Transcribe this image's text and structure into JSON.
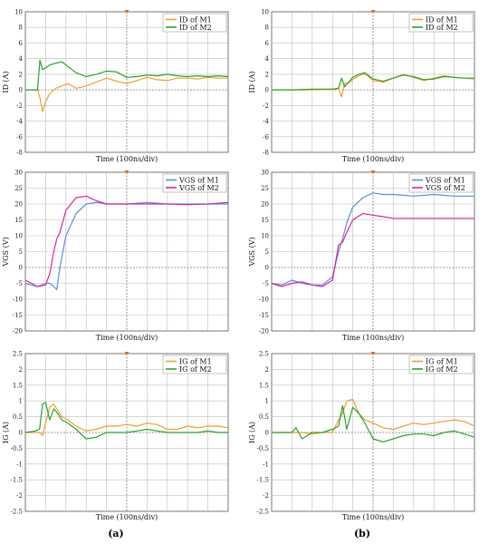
{
  "panel_labels": {
    "a": "(a)",
    "b": "(b)"
  },
  "colors": {
    "m1_id": "#f39c33",
    "m2_id": "#28a428",
    "m1_vgs": "#5b8fe0",
    "m2_vgs": "#d9259e",
    "m1_ig": "#f39c33",
    "m2_ig": "#28a428"
  },
  "chart_data": [
    {
      "type": "line",
      "panel": "a",
      "xlabel": "Time (100ns/div)",
      "ylabel": "ID (A)",
      "xlim": [
        0,
        10
      ],
      "ylim": [
        -8,
        10
      ],
      "yticks": [
        -8,
        -6,
        -4,
        -2,
        0,
        2,
        4,
        6,
        8,
        10
      ],
      "legend": "top-right",
      "series": [
        {
          "name": "ID of M1",
          "color": "#f39c33",
          "x": [
            0,
            0.4,
            0.6,
            0.72,
            0.85,
            1.0,
            1.2,
            1.5,
            1.8,
            2.1,
            2.5,
            3.0,
            3.5,
            4.0,
            4.5,
            5.0,
            5.5,
            6.0,
            6.5,
            7.0,
            7.5,
            8.0,
            8.5,
            9.0,
            9.5,
            10
          ],
          "y": [
            0,
            0,
            0,
            -1.0,
            -2.8,
            -1.5,
            -0.5,
            0.2,
            0.5,
            0.8,
            0.2,
            0.5,
            1.0,
            1.5,
            1.1,
            0.8,
            1.2,
            1.6,
            1.3,
            1.2,
            1.5,
            1.5,
            1.4,
            1.6,
            1.5,
            1.5
          ]
        },
        {
          "name": "ID of M2",
          "color": "#28a428",
          "x": [
            0,
            0.4,
            0.6,
            0.72,
            0.85,
            1.0,
            1.2,
            1.5,
            1.8,
            2.1,
            2.5,
            3.0,
            3.5,
            4.0,
            4.5,
            5.0,
            5.5,
            6.0,
            6.5,
            7.0,
            7.5,
            8.0,
            8.5,
            9.0,
            9.5,
            10
          ],
          "y": [
            0,
            0,
            0,
            3.8,
            2.6,
            2.8,
            3.2,
            3.4,
            3.6,
            3.0,
            2.2,
            1.7,
            2.0,
            2.4,
            2.3,
            1.6,
            1.7,
            1.9,
            1.8,
            2.0,
            1.8,
            1.7,
            1.8,
            1.7,
            1.8,
            1.7
          ]
        }
      ]
    },
    {
      "type": "line",
      "panel": "b",
      "xlabel": "Time (100ns/div)",
      "ylabel": "ID (A)",
      "xlim": [
        0,
        10
      ],
      "ylim": [
        -8,
        10
      ],
      "yticks": [
        -8,
        -6,
        -4,
        -2,
        0,
        2,
        4,
        6,
        8,
        10
      ],
      "legend": "top-right",
      "series": [
        {
          "name": "ID of M1",
          "color": "#f39c33",
          "x": [
            0,
            1,
            2,
            3,
            3.3,
            3.45,
            3.6,
            3.8,
            4.0,
            4.3,
            4.6,
            5.0,
            5.5,
            6.0,
            6.5,
            7.0,
            7.5,
            8.0,
            8.5,
            9.0,
            9.5,
            10
          ],
          "y": [
            0,
            0,
            0,
            0.1,
            0.2,
            -0.9,
            0.8,
            0.9,
            1.3,
            1.8,
            2.1,
            1.2,
            1.0,
            1.5,
            2.0,
            1.6,
            1.2,
            1.5,
            1.8,
            1.6,
            1.5,
            1.4
          ]
        },
        {
          "name": "ID of M2",
          "color": "#28a428",
          "x": [
            0,
            1,
            2,
            3,
            3.3,
            3.45,
            3.6,
            3.8,
            4.0,
            4.3,
            4.6,
            5.0,
            5.5,
            6.0,
            6.5,
            7.0,
            7.5,
            8.0,
            8.5,
            9.0,
            9.5,
            10
          ],
          "y": [
            0,
            0,
            0.1,
            0.1,
            0.2,
            1.5,
            0.4,
            1.0,
            1.6,
            2.0,
            2.2,
            1.4,
            1.1,
            1.5,
            1.9,
            1.7,
            1.3,
            1.4,
            1.7,
            1.6,
            1.5,
            1.5
          ]
        }
      ]
    },
    {
      "type": "line",
      "panel": "a",
      "xlabel": "Time (100ns/div)",
      "ylabel": "VGS (V)",
      "xlim": [
        0,
        10
      ],
      "ylim": [
        -20,
        30
      ],
      "yticks": [
        -20,
        -15,
        -10,
        -5,
        0,
        5,
        10,
        15,
        20,
        25,
        30
      ],
      "legend": "top-right",
      "series": [
        {
          "name": "VGS of M1",
          "color": "#5b8fe0",
          "x": [
            0,
            0.3,
            0.6,
            1.0,
            1.2,
            1.4,
            1.55,
            1.7,
            2.0,
            2.5,
            3.0,
            3.5,
            4.0,
            5.0,
            6.0,
            7.0,
            8.0,
            9.0,
            10
          ],
          "y": [
            -5,
            -5.5,
            -6,
            -5,
            -5,
            -6,
            -7,
            0,
            10,
            17,
            20,
            20.5,
            20,
            20,
            20.5,
            20,
            20,
            20,
            20
          ]
        },
        {
          "name": "VGS of M2",
          "color": "#d9259e",
          "x": [
            0,
            0.3,
            0.6,
            1.0,
            1.2,
            1.4,
            1.55,
            1.7,
            2.0,
            2.5,
            3.0,
            3.5,
            4.0,
            5.0,
            6.0,
            7.0,
            8.0,
            9.0,
            10
          ],
          "y": [
            -4,
            -5,
            -6,
            -5.5,
            -2,
            5,
            9,
            11,
            18,
            22,
            22.5,
            21,
            20,
            20,
            20,
            20,
            19.8,
            20,
            20.5
          ]
        }
      ]
    },
    {
      "type": "line",
      "panel": "b",
      "xlabel": "Time (100ns/div)",
      "ylabel": "VGS (V)",
      "xlim": [
        0,
        10
      ],
      "ylim": [
        -20,
        30
      ],
      "yticks": [
        -20,
        -15,
        -10,
        -5,
        0,
        5,
        10,
        15,
        20,
        25,
        30
      ],
      "legend": "top-right",
      "series": [
        {
          "name": "VGS of M1",
          "color": "#5b8fe0",
          "x": [
            0,
            0.5,
            1.0,
            1.5,
            2.0,
            2.5,
            3.0,
            3.3,
            3.5,
            3.7,
            4.0,
            4.5,
            5.0,
            5.5,
            6.0,
            7.0,
            8.0,
            9.0,
            10
          ],
          "y": [
            -5,
            -5.5,
            -4,
            -5,
            -5.5,
            -5.5,
            -3,
            5,
            9,
            14,
            19,
            22,
            23.5,
            23,
            23,
            22.5,
            23,
            22.5,
            22.5
          ]
        },
        {
          "name": "VGS of M2",
          "color": "#d9259e",
          "x": [
            0,
            0.5,
            1.0,
            1.5,
            2.0,
            2.5,
            3.0,
            3.3,
            3.5,
            3.7,
            4.0,
            4.5,
            5.0,
            5.5,
            6.0,
            7.0,
            8.0,
            9.0,
            10
          ],
          "y": [
            -5,
            -6,
            -5,
            -4.5,
            -5.5,
            -6,
            -4,
            7,
            8,
            11,
            15,
            17,
            16.5,
            16,
            15.5,
            15.5,
            15.5,
            15.5,
            15.5
          ]
        }
      ]
    },
    {
      "type": "line",
      "panel": "a",
      "xlabel": "Time (100ns/div)",
      "ylabel": "IG (A)",
      "xlim": [
        0,
        10
      ],
      "ylim": [
        -2.5,
        2.5
      ],
      "yticks": [
        -2.5,
        -2,
        -1.5,
        -1,
        -0.5,
        0,
        0.5,
        1,
        1.5,
        2,
        2.5
      ],
      "legend": "top-right",
      "series": [
        {
          "name": "IG of M1",
          "color": "#f39c33",
          "x": [
            0,
            0.5,
            0.7,
            0.85,
            1.0,
            1.2,
            1.4,
            1.6,
            1.8,
            2.1,
            2.5,
            3.0,
            3.5,
            4.0,
            4.5,
            5.0,
            5.5,
            6.0,
            6.5,
            7.0,
            7.5,
            8.0,
            8.5,
            9.0,
            9.5,
            10
          ],
          "y": [
            0,
            0,
            0,
            -0.1,
            0.3,
            0.8,
            0.9,
            0.7,
            0.5,
            0.4,
            0.2,
            0.05,
            0.1,
            0.2,
            0.2,
            0.25,
            0.2,
            0.3,
            0.25,
            0.1,
            0.1,
            0.2,
            0.15,
            0.2,
            0.2,
            0.15
          ]
        },
        {
          "name": "IG of M2",
          "color": "#28a428",
          "x": [
            0,
            0.5,
            0.7,
            0.85,
            1.0,
            1.2,
            1.4,
            1.6,
            1.8,
            2.1,
            2.5,
            3.0,
            3.5,
            4.0,
            4.5,
            5.0,
            5.5,
            6.0,
            6.5,
            7.0,
            7.5,
            8.0,
            8.5,
            9.0,
            9.5,
            10
          ],
          "y": [
            0,
            0.05,
            0.1,
            0.9,
            0.95,
            0.4,
            0.75,
            0.6,
            0.4,
            0.3,
            0.1,
            -0.2,
            -0.15,
            0,
            0,
            0,
            0.05,
            0.1,
            0.05,
            0,
            0,
            0,
            0,
            0.05,
            0,
            0
          ]
        }
      ]
    },
    {
      "type": "line",
      "panel": "b",
      "xlabel": "Time (100ns/div)",
      "ylabel": "IG (A)",
      "xlim": [
        0,
        10
      ],
      "ylim": [
        -2.5,
        2.5
      ],
      "yticks": [
        -2.5,
        -2,
        -1.5,
        -1,
        -0.5,
        0,
        0.5,
        1,
        1.5,
        2,
        2.5
      ],
      "legend": "top-right",
      "series": [
        {
          "name": "IG of M1",
          "color": "#f39c33",
          "x": [
            0,
            0.5,
            1.0,
            1.5,
            2.0,
            2.5,
            3.0,
            3.3,
            3.5,
            3.7,
            4.0,
            4.3,
            4.6,
            5.0,
            5.5,
            6.0,
            6.5,
            7.0,
            7.5,
            8.0,
            8.5,
            9.0,
            9.5,
            10
          ],
          "y": [
            0,
            0,
            0,
            0,
            -0.05,
            0,
            0,
            0.4,
            0.6,
            1.0,
            1.05,
            0.6,
            0.4,
            0.3,
            0.15,
            0.1,
            0.2,
            0.3,
            0.25,
            0.3,
            0.35,
            0.4,
            0.35,
            0.2
          ]
        },
        {
          "name": "IG of M2",
          "color": "#28a428",
          "x": [
            0,
            0.5,
            1.0,
            1.2,
            1.5,
            2.0,
            2.5,
            3.0,
            3.3,
            3.5,
            3.7,
            4.0,
            4.3,
            4.6,
            5.0,
            5.5,
            6.0,
            6.5,
            7.0,
            7.5,
            8.0,
            8.5,
            9.0,
            9.5,
            10
          ],
          "y": [
            0,
            0,
            0,
            0.15,
            -0.2,
            0,
            0,
            0.1,
            0.2,
            0.85,
            0.1,
            0.8,
            0.6,
            0.3,
            -0.2,
            -0.3,
            -0.2,
            -0.1,
            -0.05,
            -0.05,
            -0.1,
            0,
            0.05,
            -0.05,
            -0.15
          ]
        }
      ]
    }
  ]
}
